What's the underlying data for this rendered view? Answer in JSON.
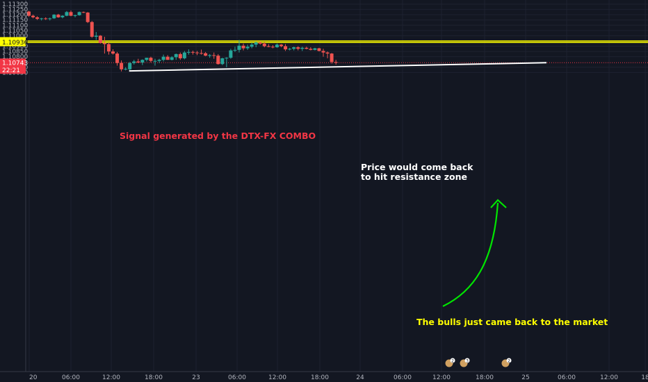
{
  "chart_data": {
    "type": "candlestick",
    "ylim": [
      1.10625,
      1.113
    ],
    "y_ticks": [
      "1.11300",
      "1.11250",
      "1.11200",
      "1.11150",
      "1.11100",
      "1.11050",
      "1.11000",
      "1.10900",
      "1.10850",
      "1.10800",
      "1.10700",
      "1.10650"
    ],
    "x_ticks": [
      "20",
      "06:00",
      "12:00",
      "18:00",
      "23",
      "06:00",
      "12:00",
      "18:00",
      "24",
      "06:00",
      "12:00",
      "18:00",
      "25",
      "06:00",
      "12:00",
      "18"
    ],
    "grid": true,
    "colors": {
      "up": "#26a69a",
      "down": "#ef5350",
      "resistance": "#ffff00",
      "trendline": "#ffffff",
      "arrow": "#00e600",
      "signal_text": "#f23645",
      "price_tag": "#f23645"
    },
    "candles": [
      [
        1.1123,
        1.11237,
        1.1118,
        1.1119
      ],
      [
        1.1119,
        1.112,
        1.11165,
        1.11175
      ],
      [
        1.11175,
        1.11185,
        1.1115,
        1.1116
      ],
      [
        1.1116,
        1.1117,
        1.11145,
        1.11165
      ],
      [
        1.11165,
        1.11175,
        1.1115,
        1.1116
      ],
      [
        1.1116,
        1.11172,
        1.11145,
        1.11165
      ],
      [
        1.11165,
        1.11205,
        1.1116,
        1.112
      ],
      [
        1.112,
        1.11208,
        1.1117,
        1.11175
      ],
      [
        1.11175,
        1.11195,
        1.11165,
        1.1119
      ],
      [
        1.1119,
        1.11235,
        1.11185,
        1.11225
      ],
      [
        1.11225,
        1.1124,
        1.11185,
        1.1119
      ],
      [
        1.1119,
        1.112,
        1.11175,
        1.11195
      ],
      [
        1.11195,
        1.1123,
        1.1119,
        1.11225
      ],
      [
        1.11225,
        1.1123,
        1.11215,
        1.1122
      ],
      [
        1.1122,
        1.11225,
        1.1112,
        1.1113
      ],
      [
        1.1113,
        1.1114,
        1.1098,
        1.1099
      ],
      [
        1.1099,
        1.11035,
        1.1096,
        1.11
      ],
      [
        1.11,
        1.11005,
        1.10925,
        1.1093
      ],
      [
        1.1093,
        1.1099,
        1.1083,
        1.1092
      ],
      [
        1.1092,
        1.10935,
        1.1082,
        1.1085
      ],
      [
        1.1085,
        1.1087,
        1.1082,
        1.1083
      ],
      [
        1.1083,
        1.10845,
        1.10715,
        1.1074
      ],
      [
        1.1074,
        1.10765,
        1.1066,
        1.1068
      ],
      [
        1.1068,
        1.107,
        1.1067,
        1.10685
      ],
      [
        1.1068,
        1.1075,
        1.1067,
        1.1074
      ],
      [
        1.1074,
        1.1077,
        1.10725,
        1.10755
      ],
      [
        1.10755,
        1.1078,
        1.1074,
        1.10745
      ],
      [
        1.10745,
        1.10775,
        1.1072,
        1.1077
      ],
      [
        1.1077,
        1.1079,
        1.10755,
        1.1079
      ],
      [
        1.1079,
        1.108,
        1.10745,
        1.1076
      ],
      [
        1.1076,
        1.1078,
        1.10715,
        1.1076
      ],
      [
        1.1076,
        1.1078,
        1.1074,
        1.1077
      ],
      [
        1.1077,
        1.1082,
        1.10755,
        1.108
      ],
      [
        1.108,
        1.10815,
        1.1077,
        1.1077
      ],
      [
        1.1077,
        1.10805,
        1.10765,
        1.10795
      ],
      [
        1.10795,
        1.1083,
        1.1077,
        1.10825
      ],
      [
        1.10825,
        1.1084,
        1.1077,
        1.10785
      ],
      [
        1.10785,
        1.10855,
        1.10775,
        1.1084
      ],
      [
        1.1084,
        1.1087,
        1.1082,
        1.10845
      ],
      [
        1.10845,
        1.10858,
        1.1082,
        1.1084
      ],
      [
        1.1084,
        1.10855,
        1.10815,
        1.10835
      ],
      [
        1.10835,
        1.10868,
        1.1082,
        1.10833
      ],
      [
        1.10833,
        1.10845,
        1.10805,
        1.1081
      ],
      [
        1.1081,
        1.10825,
        1.1079,
        1.10815
      ],
      [
        1.10815,
        1.1084,
        1.1078,
        1.1081
      ],
      [
        1.1081,
        1.10825,
        1.10725,
        1.1073
      ],
      [
        1.1073,
        1.1079,
        1.1072,
        1.10785
      ],
      [
        1.10785,
        1.10795,
        1.107,
        1.1079
      ],
      [
        1.1079,
        1.10875,
        1.1078,
        1.1086
      ],
      [
        1.1086,
        1.10895,
        1.10845,
        1.10865
      ],
      [
        1.10865,
        1.1096,
        1.1084,
        1.10905
      ],
      [
        1.10905,
        1.10925,
        1.1086,
        1.1088
      ],
      [
        1.1088,
        1.10915,
        1.10865,
        1.10895
      ],
      [
        1.10895,
        1.10935,
        1.1088,
        1.10915
      ],
      [
        1.10915,
        1.10945,
        1.1089,
        1.10935
      ],
      [
        1.10935,
        1.10945,
        1.10915,
        1.10925
      ],
      [
        1.10925,
        1.1094,
        1.1089,
        1.109
      ],
      [
        1.109,
        1.1092,
        1.1089,
        1.10895
      ],
      [
        1.10895,
        1.1091,
        1.1088,
        1.1089
      ],
      [
        1.1089,
        1.10925,
        1.10885,
        1.10915
      ],
      [
        1.10915,
        1.1092,
        1.1089,
        1.109
      ],
      [
        1.109,
        1.1092,
        1.10855,
        1.1087
      ],
      [
        1.1087,
        1.10885,
        1.1086,
        1.10875
      ],
      [
        1.10875,
        1.10895,
        1.1086,
        1.1089
      ],
      [
        1.1089,
        1.109,
        1.1086,
        1.10875
      ],
      [
        1.10875,
        1.10895,
        1.10855,
        1.10885
      ],
      [
        1.10885,
        1.10895,
        1.1087,
        1.10875
      ],
      [
        1.10875,
        1.1089,
        1.1086,
        1.10865
      ],
      [
        1.10865,
        1.10885,
        1.1086,
        1.1088
      ],
      [
        1.1088,
        1.10885,
        1.1085,
        1.10855
      ],
      [
        1.10855,
        1.10875,
        1.108,
        1.1084
      ],
      [
        1.1084,
        1.1085,
        1.10785,
        1.1083
      ],
      [
        1.1083,
        1.10835,
        1.10735,
        1.1075
      ],
      [
        1.1075,
        1.1077,
        1.10725,
        1.10743
      ]
    ],
    "resistance_levels": [
      1.1095,
      1.10936
    ],
    "current_price": {
      "price": "1.10743",
      "countdown": "22:21",
      "value": 1.10743
    },
    "trendline": {
      "from": {
        "bar": 24,
        "price": 1.10665
      },
      "to": {
        "bar": 104,
        "price": 1.10743
      }
    },
    "annotations": [
      {
        "key": "signal",
        "text": "Signal generated by the DTX-FX COMBO",
        "color": "#f23645"
      },
      {
        "key": "price1",
        "text": "Price would come back",
        "color": "#ffffff"
      },
      {
        "key": "price2",
        "text": "to hit resistance zone",
        "color": "#ffffff"
      },
      {
        "key": "bulls",
        "text": "The bulls just came back to the market",
        "color": "#ffff00"
      }
    ],
    "event_markers": [
      {
        "label": "2",
        "icon": "calendar-event-icon"
      },
      {
        "label": "3",
        "icon": "calendar-event-icon"
      },
      {
        "label": "2",
        "icon": "calendar-event-icon"
      }
    ]
  }
}
